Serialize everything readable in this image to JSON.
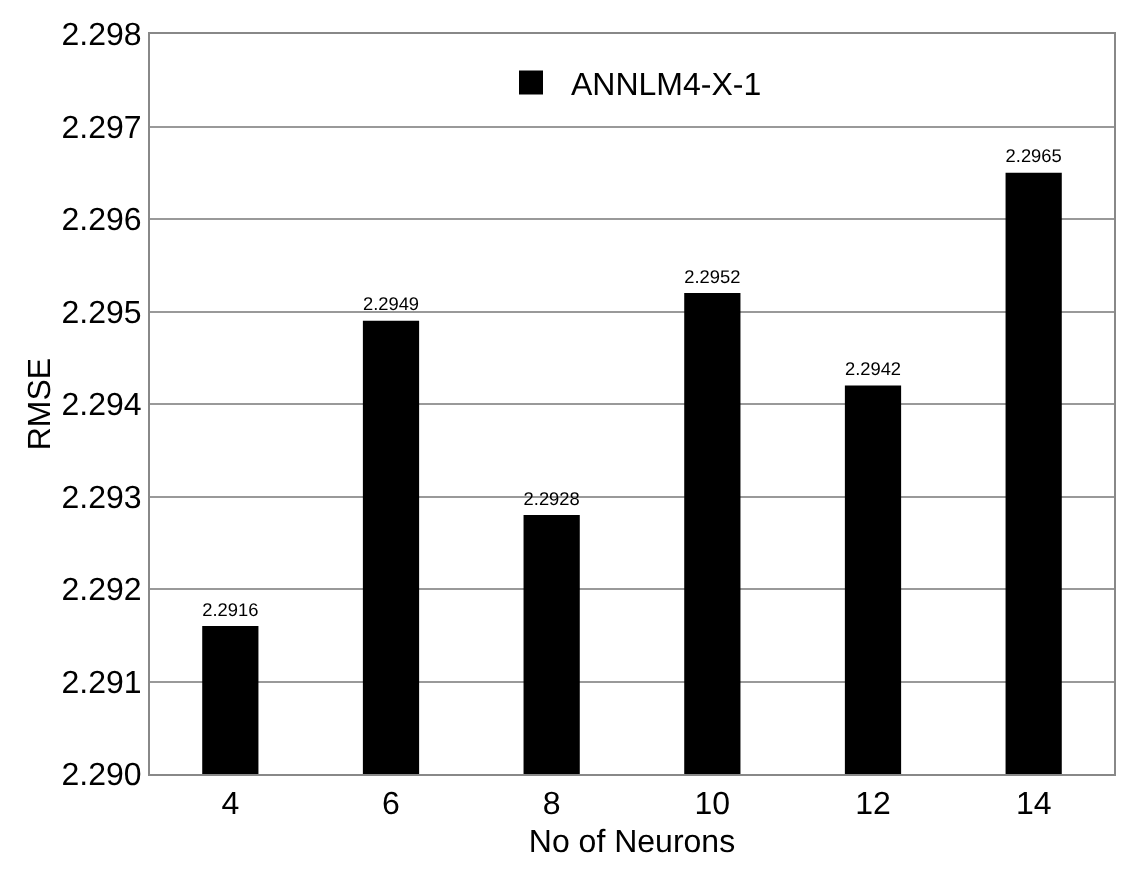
{
  "chart_data": {
    "type": "bar",
    "xlabel": "No of Neurons",
    "ylabel": "RMSE",
    "categories": [
      "4",
      "6",
      "8",
      "10",
      "12",
      "14"
    ],
    "series": [
      {
        "name": "ANNLM4-X-1",
        "color": "#000000",
        "values": [
          2.2916,
          2.2949,
          2.2928,
          2.2952,
          2.2942,
          2.2965
        ]
      }
    ],
    "data_labels": true,
    "ylim": [
      2.29,
      2.298
    ],
    "yticks": [
      {
        "value": 2.29,
        "label": "2.290"
      },
      {
        "value": 2.291,
        "label": "2.291"
      },
      {
        "value": 2.292,
        "label": "2.292"
      },
      {
        "value": 2.293,
        "label": "2.293"
      },
      {
        "value": 2.294,
        "label": "2.294"
      },
      {
        "value": 2.295,
        "label": "2.295"
      },
      {
        "value": 2.296,
        "label": "2.296"
      },
      {
        "value": 2.297,
        "label": "2.297"
      },
      {
        "value": 2.298,
        "label": "2.298"
      }
    ],
    "grid": "y",
    "legend": "top"
  }
}
